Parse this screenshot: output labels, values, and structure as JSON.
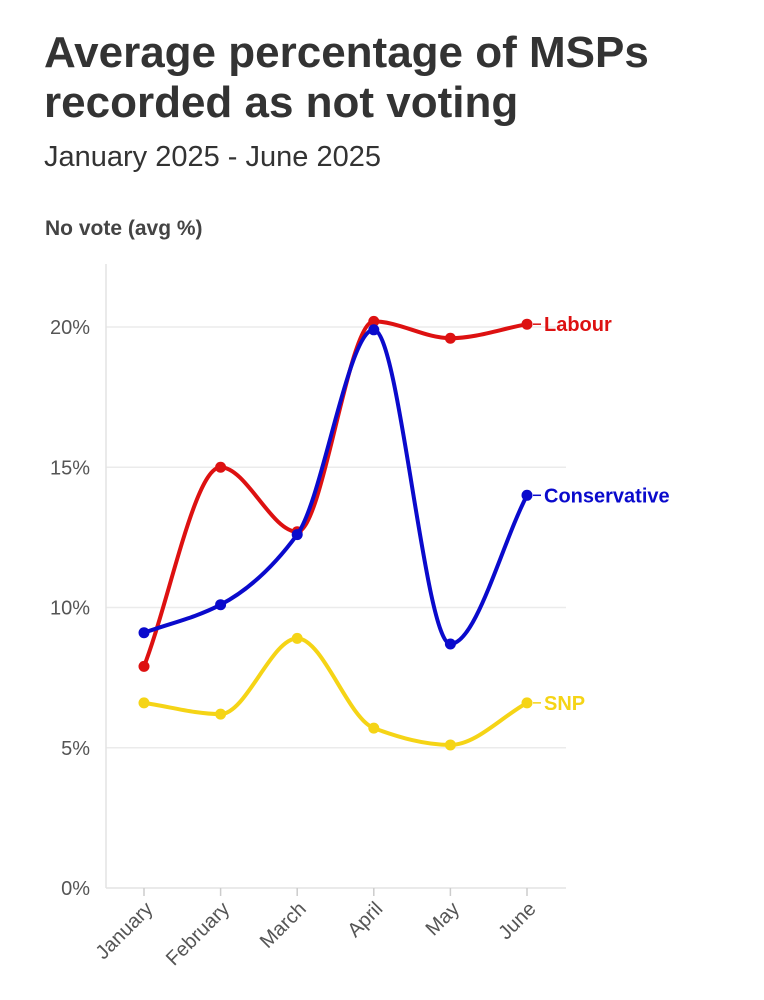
{
  "header": {
    "title": "Average percentage of MSPs recorded as not voting",
    "subtitle": "January 2025 - June 2025"
  },
  "chart_data": {
    "type": "line",
    "title": "Average percentage of MSPs recorded as not voting",
    "subtitle": "January 2025 - June 2025",
    "xlabel": "",
    "ylabel": "No vote (avg %)",
    "categories": [
      "January",
      "February",
      "March",
      "April",
      "May",
      "June"
    ],
    "ylim": [
      0,
      22
    ],
    "yticks": [
      0,
      5,
      10,
      15,
      20
    ],
    "ytick_labels": [
      "0%",
      "5%",
      "10%",
      "15%",
      "20%"
    ],
    "grid": true,
    "legend": "direct labels at line ends (right)",
    "series": [
      {
        "name": "Labour",
        "color": "#dd1111",
        "values": [
          7.9,
          15.0,
          12.7,
          20.2,
          19.6,
          20.1
        ]
      },
      {
        "name": "Conservative",
        "color": "#0a0acc",
        "values": [
          9.1,
          10.1,
          12.6,
          19.9,
          8.7,
          14.0
        ]
      },
      {
        "name": "SNP",
        "color": "#f5d416",
        "values": [
          6.6,
          6.2,
          8.9,
          5.7,
          5.1,
          6.6
        ]
      }
    ]
  }
}
